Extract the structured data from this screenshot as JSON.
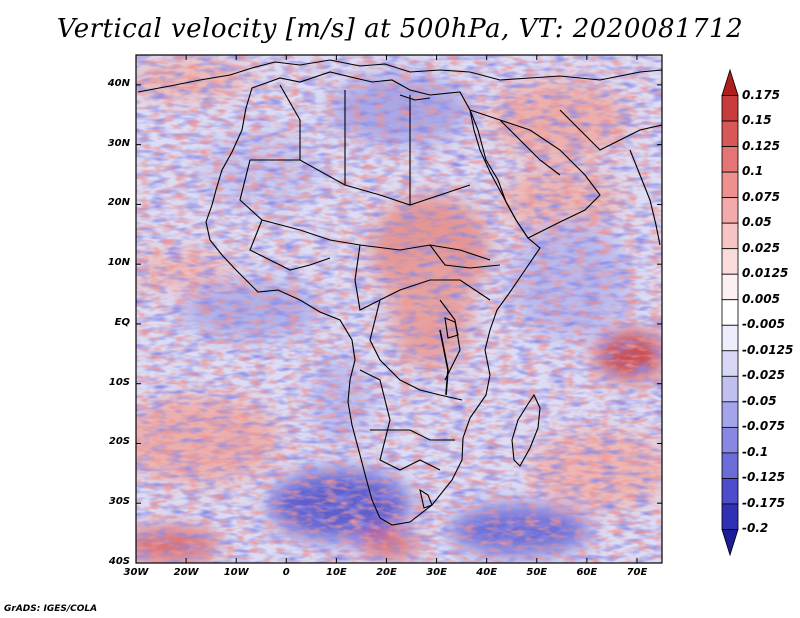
{
  "title": "Vertical velocity [m/s] at 500hPa, VT: 2020081712",
  "footer": "GrADS: IGES/COLA",
  "map": {
    "lon_range": [
      -30,
      75
    ],
    "lat_range": [
      -40,
      45
    ],
    "lat_labels": [
      "40N",
      "30N",
      "20N",
      "10N",
      "EQ",
      "10S",
      "20S",
      "30S",
      "40S"
    ],
    "lat_values": [
      40,
      30,
      20,
      10,
      0,
      -10,
      -20,
      -30,
      -40
    ],
    "lon_labels": [
      "30W",
      "20W",
      "10W",
      "0",
      "10E",
      "20E",
      "30E",
      "40E",
      "50E",
      "60E",
      "70E"
    ],
    "lon_values": [
      -30,
      -20,
      -10,
      0,
      10,
      20,
      30,
      40,
      50,
      60,
      70
    ]
  },
  "colorbar": {
    "labels": [
      "0.175",
      "0.15",
      "0.125",
      "0.1",
      "0.075",
      "0.05",
      "0.025",
      "0.0125",
      "0.005",
      "-0.005",
      "-0.0125",
      "-0.025",
      "-0.05",
      "-0.075",
      "-0.1",
      "-0.125",
      "-0.175",
      "-0.2"
    ],
    "colors": [
      "#b01e1e",
      "#c83c3c",
      "#d85858",
      "#e57474",
      "#ec9090",
      "#f2aaaa",
      "#f6c4c4",
      "#fadcdc",
      "#fdf0f0",
      "#ffffff",
      "#ededfb",
      "#d8d8f6",
      "#c0c0f0",
      "#a4a4ea",
      "#8888e2",
      "#6c6cd8",
      "#4c4ccc",
      "#3030b4",
      "#1c1c96"
    ]
  },
  "colors": {
    "positive": "#e05555",
    "negative": "#4545d0",
    "coast": "#000000"
  }
}
